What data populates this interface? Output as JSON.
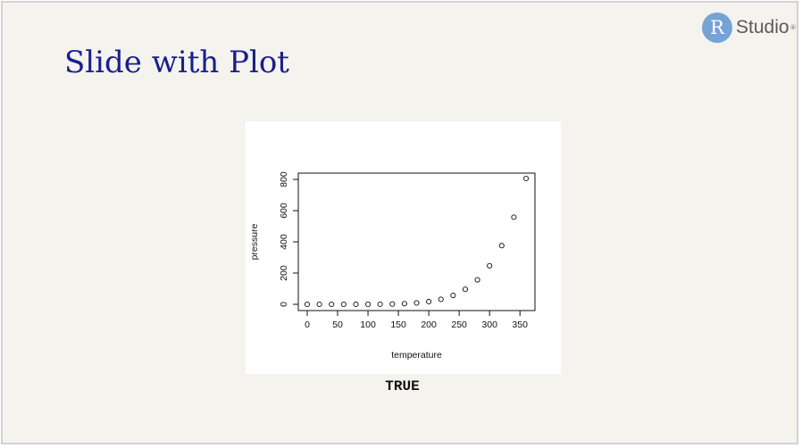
{
  "logo": {
    "letter": "R",
    "text": "Studio",
    "reg": "®"
  },
  "slide": {
    "title": "Slide with Plot"
  },
  "output": {
    "text": "TRUE"
  },
  "chart_data": {
    "type": "scatter",
    "xlabel": "temperature",
    "ylabel": "pressure",
    "xlim": [
      0,
      360
    ],
    "ylim": [
      0,
      806
    ],
    "x_ticks": [
      0,
      50,
      100,
      150,
      200,
      250,
      300,
      350
    ],
    "y_ticks": [
      0,
      200,
      400,
      600,
      800
    ],
    "x": [
      0,
      20,
      40,
      60,
      80,
      100,
      120,
      140,
      160,
      180,
      200,
      220,
      240,
      260,
      280,
      300,
      320,
      340,
      360
    ],
    "y": [
      0.0002,
      0.0012,
      0.006,
      0.03,
      0.09,
      0.27,
      0.75,
      1.85,
      4.2,
      8.8,
      17.3,
      32.1,
      57,
      96,
      157,
      247,
      376,
      558,
      806
    ]
  }
}
